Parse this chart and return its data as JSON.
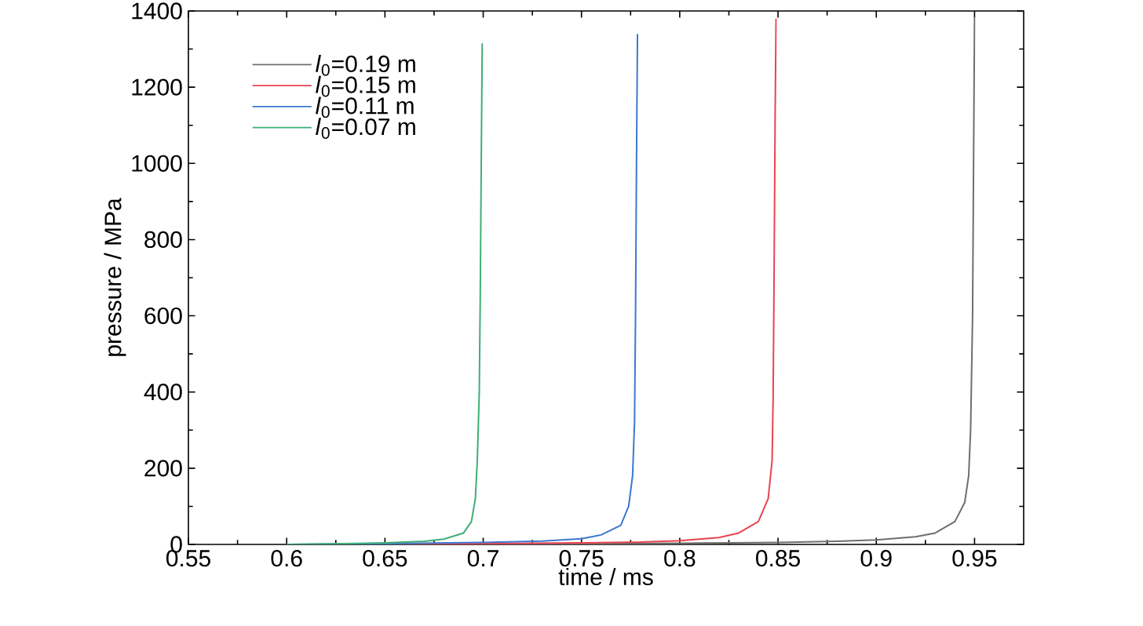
{
  "chart_data": {
    "type": "line",
    "xlabel": "time / ms",
    "ylabel": "pressure / MPa",
    "xlim": [
      0.55,
      0.975
    ],
    "xticks": [
      0.55,
      0.6,
      0.65,
      0.7,
      0.75,
      0.8,
      0.85,
      0.9,
      0.95
    ],
    "ylim": [
      0,
      1400
    ],
    "yticks": [
      0,
      200,
      400,
      600,
      800,
      1000,
      1200,
      1400
    ],
    "grid": false,
    "legend": "top left",
    "marker": "none",
    "line_style": "solid",
    "series": [
      {
        "name": "*l*$_{0}$=0.19 m",
        "color": "#6e6e6e",
        "x": [
          0.6,
          0.7,
          0.8,
          0.85,
          0.88,
          0.9,
          0.92,
          0.93,
          0.94,
          0.945,
          0.947,
          0.948,
          0.949,
          0.9495,
          0.95
        ],
        "values": [
          0,
          1,
          3,
          5,
          8,
          12,
          20,
          30,
          60,
          110,
          180,
          300,
          600,
          1000,
          1383
        ]
      },
      {
        "name": "*l*$_{0}$=0.15 m",
        "color": "#e8434f",
        "x": [
          0.6,
          0.7,
          0.75,
          0.78,
          0.8,
          0.82,
          0.83,
          0.84,
          0.845,
          0.847,
          0.8475,
          0.848,
          0.8485,
          0.849
        ],
        "values": [
          0,
          2,
          4,
          6,
          10,
          18,
          30,
          60,
          120,
          220,
          380,
          700,
          1100,
          1380
        ]
      },
      {
        "name": "*l*$_{0}$=0.11 m",
        "color": "#3c78d0",
        "x": [
          0.6,
          0.65,
          0.7,
          0.73,
          0.75,
          0.76,
          0.77,
          0.774,
          0.776,
          0.777,
          0.7775,
          0.778,
          0.7785
        ],
        "values": [
          0,
          2,
          5,
          9,
          15,
          25,
          50,
          100,
          180,
          320,
          600,
          1000,
          1340
        ]
      },
      {
        "name": "*l*$_{0}$=0.07 m",
        "color": "#3fae78",
        "x": [
          0.6,
          0.63,
          0.65,
          0.67,
          0.68,
          0.69,
          0.694,
          0.696,
          0.697,
          0.698,
          0.6985,
          0.699,
          0.6995
        ],
        "values": [
          0,
          2,
          4,
          8,
          14,
          30,
          60,
          120,
          220,
          400,
          650,
          1000,
          1315
        ]
      }
    ]
  }
}
